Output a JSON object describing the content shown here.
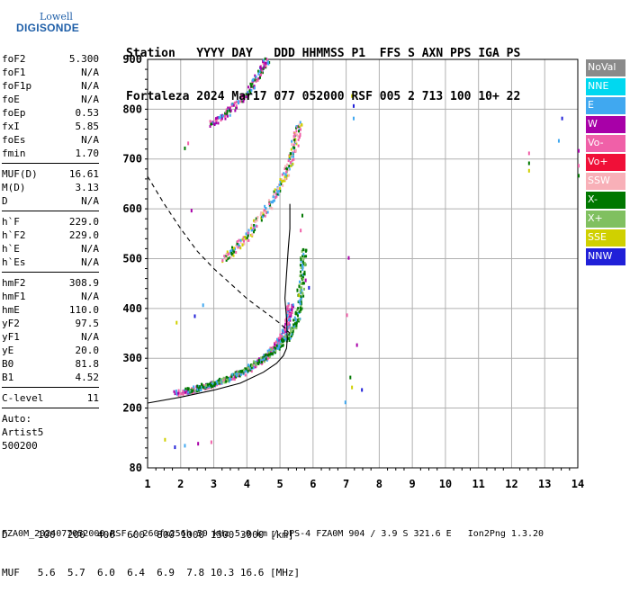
{
  "logo": {
    "line1": "Lowell",
    "line2": "DIGISONDE"
  },
  "header": {
    "line1": "Station   YYYY DAY   DDD HHMMSS P1  FFS S AXN PPS IGA PS",
    "line2": "Fortaleza 2024 Mar17 077 052000 RSF 005 2 713 100 10+ 22"
  },
  "params_group1": [
    {
      "label": "foF2",
      "value": "5.300"
    },
    {
      "label": "foF1",
      "value": "N/A"
    },
    {
      "label": "foF1p",
      "value": "N/A"
    },
    {
      "label": "foE",
      "value": "N/A"
    },
    {
      "label": "foEp",
      "value": "0.53"
    },
    {
      "label": "fxI",
      "value": "5.85"
    },
    {
      "label": "foEs",
      "value": "N/A"
    },
    {
      "label": "fmin",
      "value": "1.70"
    }
  ],
  "params_group2": [
    {
      "label": "MUF(D)",
      "value": "16.61"
    },
    {
      "label": "M(D)",
      "value": "3.13"
    },
    {
      "label": "D",
      "value": "N/A"
    }
  ],
  "params_group3": [
    {
      "label": "h`F",
      "value": "229.0"
    },
    {
      "label": "h`F2",
      "value": "229.0"
    },
    {
      "label": "h`E",
      "value": "N/A"
    },
    {
      "label": "h`Es",
      "value": "N/A"
    }
  ],
  "params_group4": [
    {
      "label": "hmF2",
      "value": "308.9"
    },
    {
      "label": "hmF1",
      "value": "N/A"
    },
    {
      "label": "hmE",
      "value": "110.0"
    },
    {
      "label": "yF2",
      "value": "97.5"
    },
    {
      "label": "yF1",
      "value": "N/A"
    },
    {
      "label": "yE",
      "value": "20.0"
    },
    {
      "label": "B0",
      "value": "81.8"
    },
    {
      "label": "B1",
      "value": "4.52"
    }
  ],
  "params_group5": [
    {
      "label": "C-level",
      "value": "11"
    }
  ],
  "auto": {
    "line1": "Auto:",
    "line2": "Artist5",
    "line3": "500200"
  },
  "legend": [
    {
      "label": "NoVal",
      "color": "#8a8a8a"
    },
    {
      "label": "NNE",
      "color": "#00d8f0"
    },
    {
      "label": "E",
      "color": "#40a8f0"
    },
    {
      "label": "W",
      "color": "#a800a8"
    },
    {
      "label": "Vo-",
      "color": "#f060a8"
    },
    {
      "label": "Vo+",
      "color": "#f01038"
    },
    {
      "label": "SSW",
      "color": "#f8b0b8"
    },
    {
      "label": "X-",
      "color": "#007800"
    },
    {
      "label": "X+",
      "color": "#80c060"
    },
    {
      "label": "SSE",
      "color": "#d0d000"
    },
    {
      "label": "NNW",
      "color": "#2020d8"
    }
  ],
  "footer": {
    "line1": "D     100  200  400  600  800 1000 1500 3000 [km]",
    "line2": "MUF   5.6  5.7  6.0  6.4  6.9  7.8 10.3 16.6 [MHz]"
  },
  "credits": "FZA0M_2024077052000.RSF / 260fx256h 50 kHz 5.0 km / DPS-4 FZA0M 904 / 3.9 S 321.6 E   Ion2Png 1.3.20",
  "chart_data": {
    "type": "scatter",
    "xlim": [
      1,
      14
    ],
    "ylim": [
      80,
      900
    ],
    "x_ticks": [
      1,
      2,
      3,
      4,
      5,
      6,
      7,
      8,
      9,
      10,
      11,
      12,
      13,
      14
    ],
    "y_ticks": [
      80,
      200,
      300,
      400,
      500,
      600,
      700,
      800,
      900
    ],
    "grid": true,
    "trace_O_F2": [
      [
        1.85,
        232
      ],
      [
        2.2,
        236
      ],
      [
        2.6,
        243
      ],
      [
        3.0,
        251
      ],
      [
        3.4,
        260
      ],
      [
        3.8,
        272
      ],
      [
        4.2,
        288
      ],
      [
        4.5,
        303
      ],
      [
        4.8,
        322
      ],
      [
        5.0,
        340
      ],
      [
        5.15,
        360
      ],
      [
        5.25,
        385
      ],
      [
        5.3,
        410
      ]
    ],
    "trace_X_F2": [
      [
        2.2,
        238
      ],
      [
        2.6,
        244
      ],
      [
        3.0,
        252
      ],
      [
        3.4,
        262
      ],
      [
        3.8,
        274
      ],
      [
        4.2,
        290
      ],
      [
        4.6,
        308
      ],
      [
        5.0,
        330
      ],
      [
        5.3,
        352
      ],
      [
        5.5,
        380
      ],
      [
        5.6,
        420
      ],
      [
        5.65,
        470
      ],
      [
        5.7,
        520
      ]
    ],
    "trace_2F": [
      [
        3.3,
        500
      ],
      [
        3.6,
        520
      ],
      [
        4.0,
        548
      ],
      [
        4.4,
        585
      ],
      [
        4.8,
        625
      ],
      [
        5.1,
        660
      ],
      [
        5.3,
        700
      ],
      [
        5.45,
        740
      ],
      [
        5.55,
        770
      ]
    ],
    "trace_3F": [
      [
        2.9,
        772
      ],
      [
        3.3,
        790
      ],
      [
        3.7,
        815
      ],
      [
        4.1,
        845
      ],
      [
        4.4,
        880
      ],
      [
        4.6,
        900
      ]
    ],
    "scatter_misc": [
      [
        5.65,
        490
      ],
      [
        5.75,
        460
      ],
      [
        5.6,
        560
      ],
      [
        5.65,
        590
      ],
      [
        7.15,
        830
      ],
      [
        7.2,
        810
      ],
      [
        7.2,
        785
      ],
      [
        7.05,
        505
      ],
      [
        7.0,
        390
      ],
      [
        7.1,
        265
      ],
      [
        7.15,
        245
      ],
      [
        7.45,
        240
      ],
      [
        6.95,
        215
      ],
      [
        7.3,
        330
      ],
      [
        12.5,
        715
      ],
      [
        12.5,
        695
      ],
      [
        12.5,
        680
      ],
      [
        13.5,
        785
      ],
      [
        13.4,
        740
      ],
      [
        14.0,
        720
      ],
      [
        14.0,
        690
      ],
      [
        14.0,
        670
      ],
      [
        1.85,
        375
      ],
      [
        2.4,
        388
      ],
      [
        2.65,
        410
      ],
      [
        2.3,
        600
      ],
      [
        2.2,
        735
      ],
      [
        2.1,
        725
      ],
      [
        1.5,
        140
      ],
      [
        1.8,
        125
      ],
      [
        2.1,
        128
      ],
      [
        2.5,
        132
      ],
      [
        2.9,
        135
      ],
      [
        5.5,
        440
      ],
      [
        5.55,
        430
      ],
      [
        5.85,
        445
      ]
    ],
    "model_profile_solid": [
      [
        1.0,
        210
      ],
      [
        2.0,
        222
      ],
      [
        3.0,
        236
      ],
      [
        3.8,
        250
      ],
      [
        4.5,
        272
      ],
      [
        4.9,
        290
      ],
      [
        5.1,
        305
      ],
      [
        5.2,
        320
      ],
      [
        5.22,
        340
      ],
      [
        5.2,
        380
      ],
      [
        5.15,
        420
      ],
      [
        5.2,
        470
      ],
      [
        5.25,
        520
      ],
      [
        5.3,
        560
      ],
      [
        5.3,
        610
      ]
    ],
    "model_profile_dashed": [
      [
        1.0,
        665
      ],
      [
        1.5,
        610
      ],
      [
        2.0,
        560
      ],
      [
        2.5,
        515
      ],
      [
        3.0,
        480
      ],
      [
        3.5,
        450
      ],
      [
        4.0,
        420
      ],
      [
        4.5,
        395
      ],
      [
        5.0,
        370
      ],
      [
        5.3,
        350
      ]
    ]
  }
}
